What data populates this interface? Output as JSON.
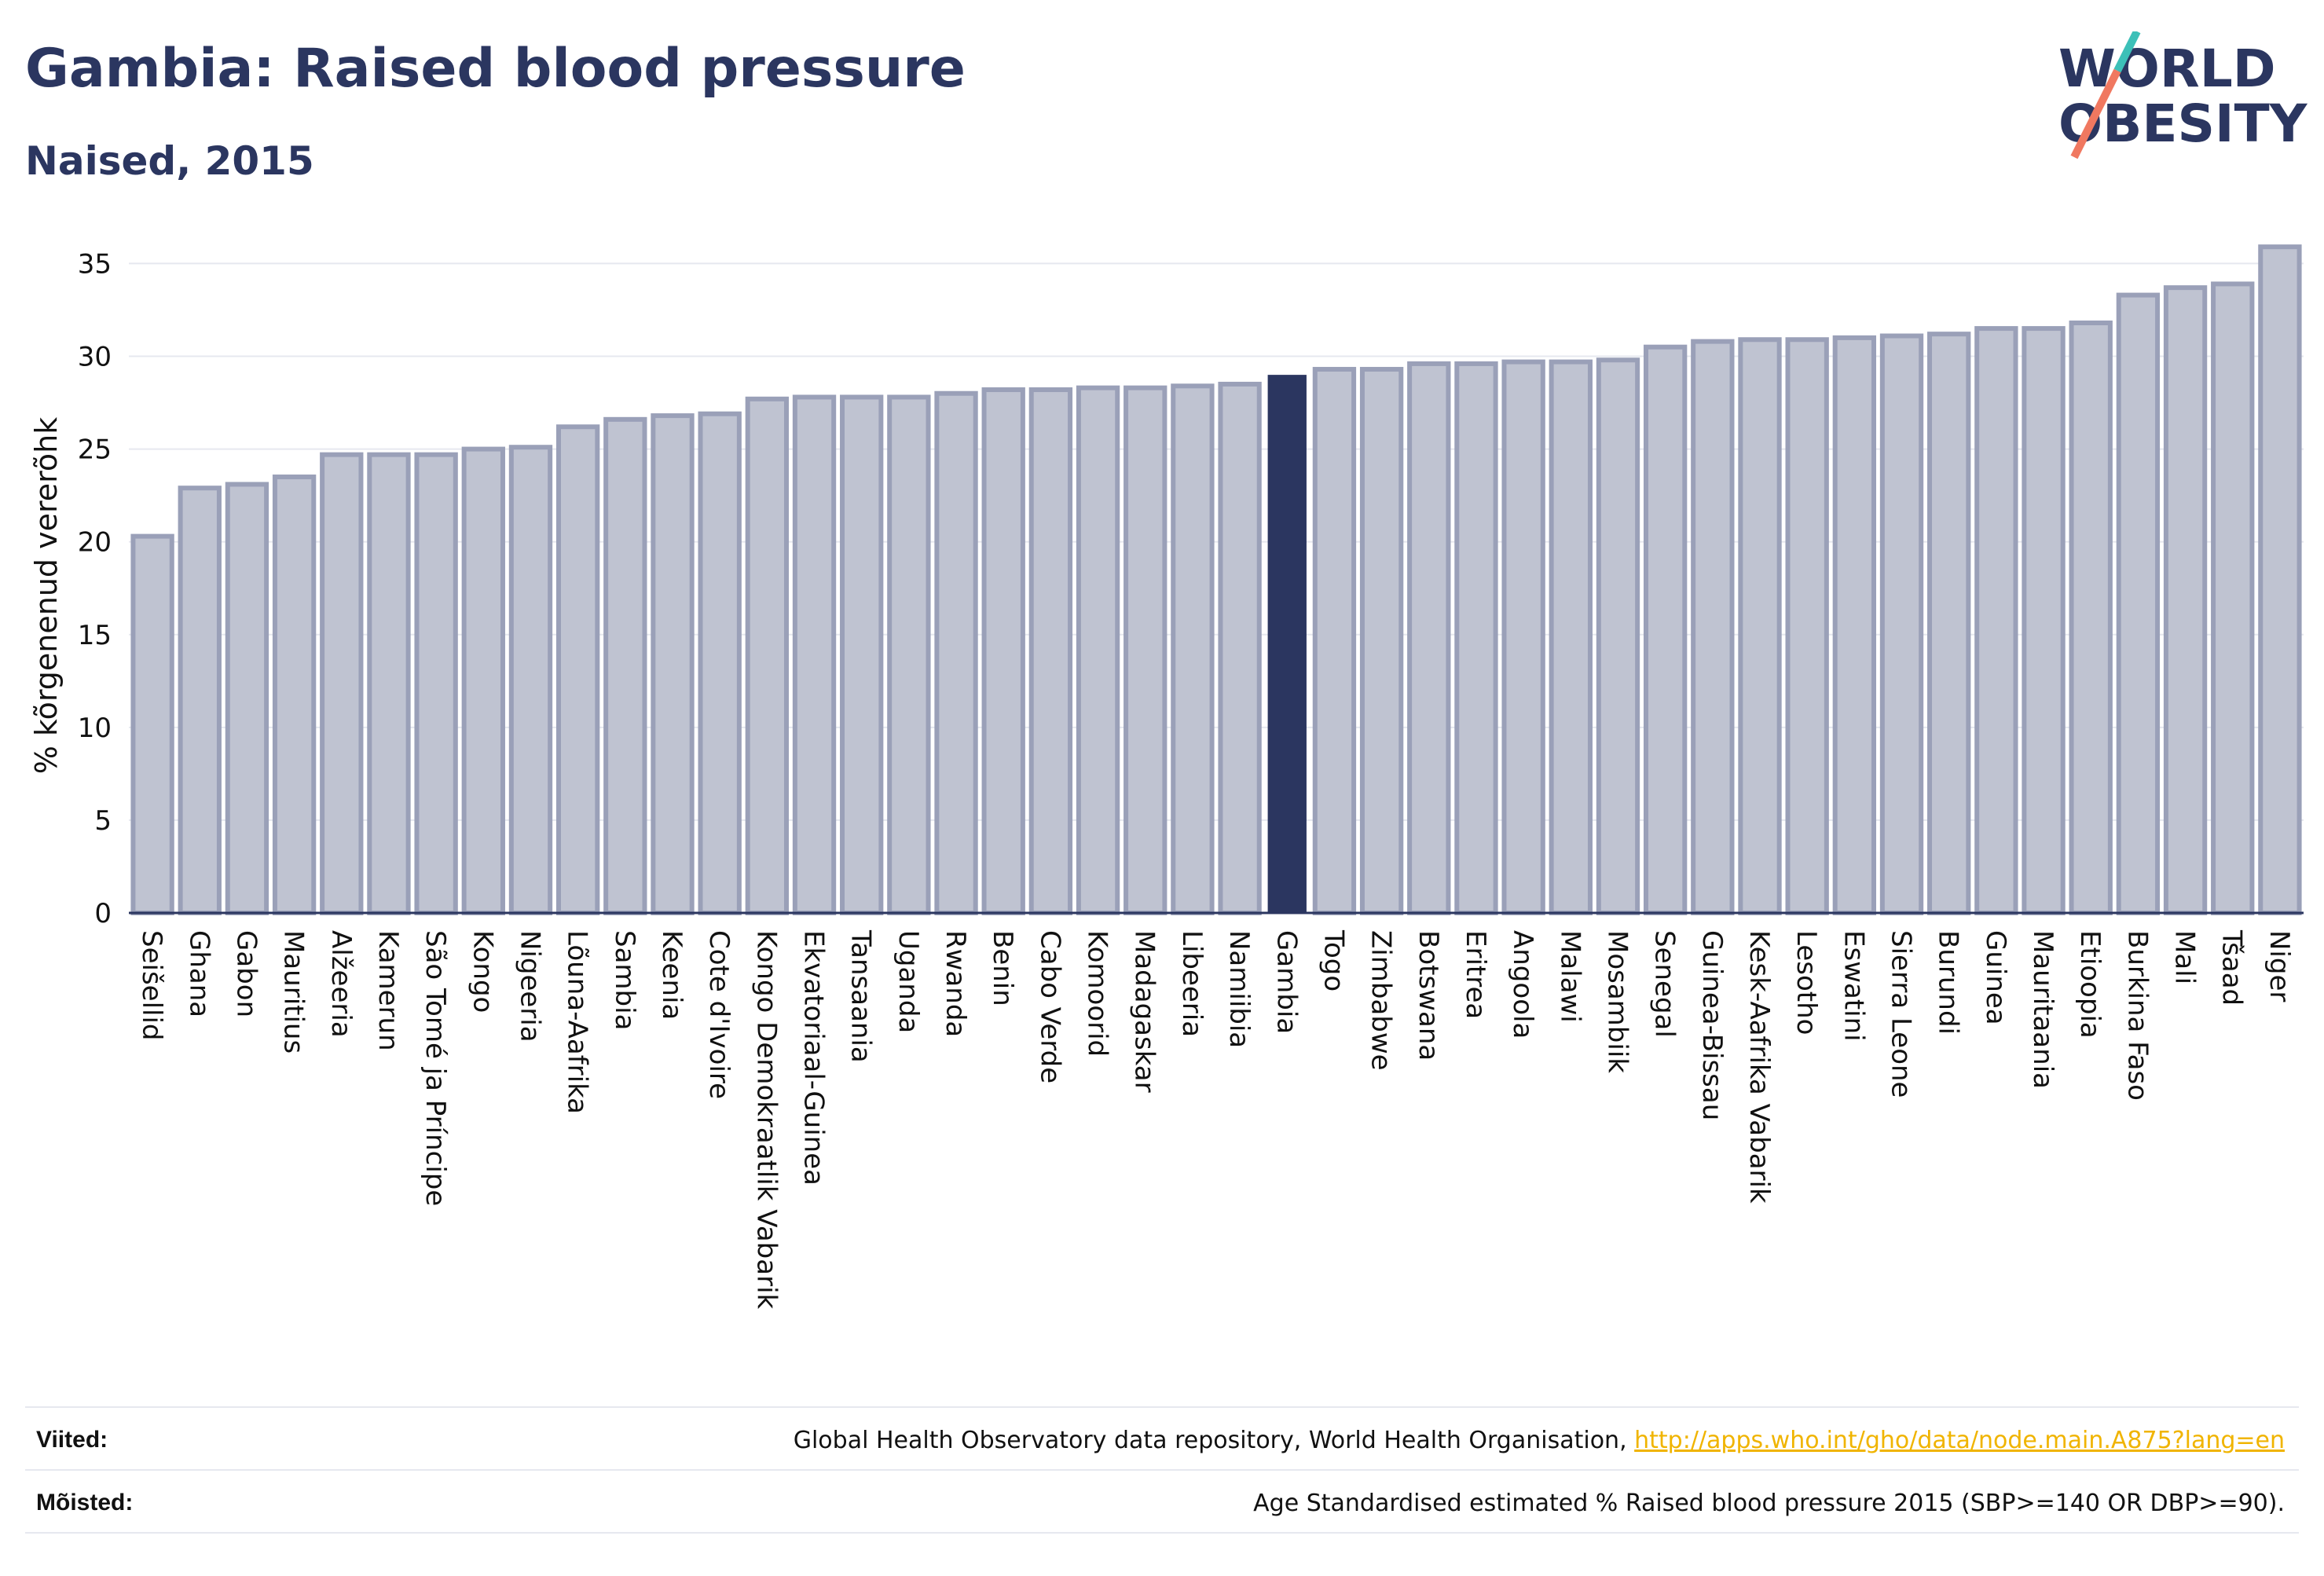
{
  "header": {
    "title": "Gambia: Raised blood pressure",
    "subtitle": "Naised, 2015",
    "logo_line1": "WORLD",
    "logo_line2": "OBESITY"
  },
  "colors": {
    "highlight": "#2b3660",
    "bar_fill": "#bfc3d1",
    "bar_stroke": "#9aa0b8",
    "axis": "#2b3660",
    "grid": "#e6e8ef",
    "logo_teal": "#3cc0b8",
    "logo_coral": "#f07860"
  },
  "chart_data": {
    "type": "bar",
    "title": "Gambia: Raised blood pressure",
    "subtitle": "Naised, 2015",
    "xlabel": "",
    "ylabel": "% kõrgenenud vererõhk",
    "ylim": [
      0,
      36.5
    ],
    "yticks": [
      0,
      5,
      10,
      15,
      20,
      25,
      30,
      35
    ],
    "grid": true,
    "highlight_category": "Gambia",
    "categories": [
      "Seišellid",
      "Ghana",
      "Gabon",
      "Mauritius",
      "Alžeeria",
      "Kamerun",
      "São Tomé ja Príncipe",
      "Kongo",
      "Nigeeria",
      "Lõuna-Aafrika",
      "Sambia",
      "Keenia",
      "Cote d'Ivoire",
      "Kongo Demokraatlik Vabarik",
      "Ekvatoriaal-Guinea",
      "Tansaania",
      "Uganda",
      "Rwanda",
      "Benin",
      "Cabo Verde",
      "Komoorid",
      "Madagaskar",
      "Libeeria",
      "Namiibia",
      "Gambia",
      "Togo",
      "Zimbabwe",
      "Botswana",
      "Eritrea",
      "Angoola",
      "Malawi",
      "Mosambiik",
      "Senegal",
      "Guinea-Bissau",
      "Kesk-Aafrika Vabarik",
      "Lesotho",
      "Eswatini",
      "Sierra Leone",
      "Burundi",
      "Guinea",
      "Mauritaania",
      "Etioopia",
      "Burkina Faso",
      "Mali",
      "Tšaad",
      "Niger"
    ],
    "values": [
      20.3,
      22.9,
      23.1,
      23.5,
      24.7,
      24.7,
      24.7,
      25.0,
      25.1,
      26.2,
      26.6,
      26.8,
      26.9,
      27.7,
      27.8,
      27.8,
      27.8,
      28.0,
      28.2,
      28.2,
      28.3,
      28.3,
      28.4,
      28.5,
      29.0,
      29.3,
      29.3,
      29.6,
      29.6,
      29.7,
      29.7,
      29.8,
      30.5,
      30.8,
      30.9,
      30.9,
      31.0,
      31.1,
      31.2,
      31.5,
      31.5,
      31.8,
      33.3,
      33.7,
      33.9,
      35.9
    ]
  },
  "footer": {
    "sources_label": "Viited:",
    "sources_text": "Global Health Observatory data repository, World Health Organisation, ",
    "sources_link": "http://apps.who.int/gho/data/node.main.A875?lang=en",
    "definitions_label": "Mõisted:",
    "definitions_text": "Age Standardised estimated % Raised blood pressure 2015 (SBP>=140 OR DBP>=90)."
  }
}
